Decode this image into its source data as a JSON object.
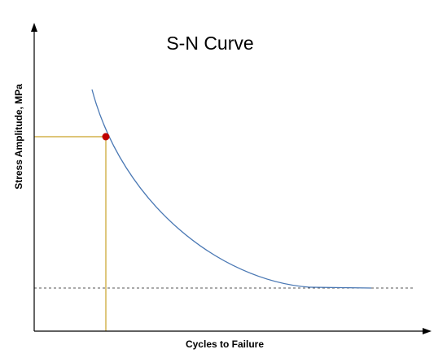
{
  "diagram": {
    "title": "S-N Curve",
    "x_axis_label": "Cycles to Failure",
    "y_axis_label": "Stress Amplitude, MPa"
  },
  "colors": {
    "axis": "#000000",
    "curve": "#4a78b4",
    "guide_lines": "#c9a227",
    "marker": "#c00000",
    "endurance_line": "#555555"
  }
}
